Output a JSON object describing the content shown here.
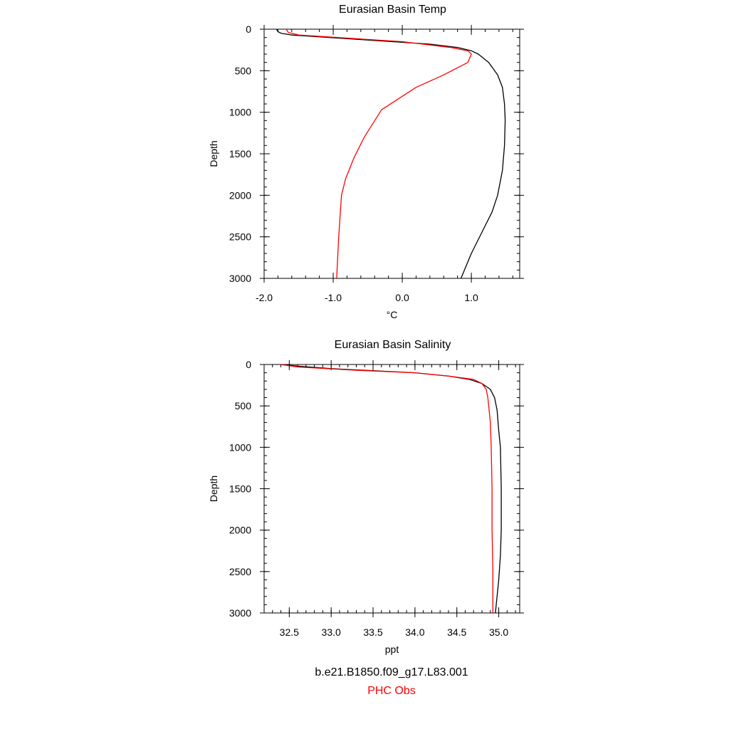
{
  "chart_data": [
    {
      "type": "line",
      "title": "Eurasian Basin Temp",
      "xlabel": "°C",
      "ylabel": "Depth",
      "xlim": [
        -2.0,
        1.7
      ],
      "ylim": [
        0,
        3000
      ],
      "y_inverted": true,
      "xticks": [
        -2.0,
        -1.0,
        0.0,
        1.0
      ],
      "xtick_labels": [
        "-2.0",
        "-1.0",
        "0.0",
        "1.0"
      ],
      "yticks": [
        0,
        500,
        1000,
        1500,
        2000,
        2500,
        3000
      ],
      "ytick_labels": [
        "0",
        "500",
        "1000",
        "1500",
        "2000",
        "2500",
        "3000"
      ],
      "grid": false,
      "series": [
        {
          "name": "b.e21.B1850.f09_g17.L83.001",
          "color": "#000000",
          "x": [
            -1.82,
            -1.8,
            -1.75,
            -1.6,
            -0.5,
            0.4,
            0.8,
            1.0,
            1.1,
            1.25,
            1.38,
            1.45,
            1.48,
            1.49,
            1.48,
            1.45,
            1.38,
            1.3,
            1.18,
            1.0,
            0.85
          ],
          "y": [
            0,
            30,
            50,
            70,
            130,
            180,
            220,
            260,
            300,
            400,
            550,
            700,
            900,
            1100,
            1400,
            1700,
            2000,
            2200,
            2400,
            2700,
            3000
          ]
        },
        {
          "name": "PHC Obs",
          "color": "#ff0000",
          "x": [
            -1.68,
            -1.65,
            -1.5,
            0.0,
            0.7,
            0.95,
            1.0,
            0.95,
            0.6,
            0.2,
            -0.3,
            -0.55,
            -0.7,
            -0.82,
            -0.88,
            -0.92,
            -0.95
          ],
          "y": [
            0,
            40,
            70,
            150,
            220,
            260,
            300,
            400,
            550,
            700,
            970,
            1300,
            1550,
            1800,
            2000,
            2500,
            3000
          ]
        }
      ]
    },
    {
      "type": "line",
      "title": "Eurasian Basin Salinity",
      "xlabel": "ppt",
      "ylabel": "Depth",
      "xlim": [
        32.2,
        35.25
      ],
      "ylim": [
        0,
        3000
      ],
      "y_inverted": true,
      "xticks": [
        32.5,
        33.0,
        33.5,
        34.0,
        34.5,
        35.0
      ],
      "xtick_labels": [
        "32.5",
        "33.0",
        "33.5",
        "34.0",
        "34.5",
        "35.0"
      ],
      "yticks": [
        0,
        500,
        1000,
        1500,
        2000,
        2500,
        3000
      ],
      "ytick_labels": [
        "0",
        "500",
        "1000",
        "1500",
        "2000",
        "2500",
        "3000"
      ],
      "grid": false,
      "series": [
        {
          "name": "b.e21.B1850.f09_g17.L83.001",
          "color": "#000000",
          "x": [
            32.4,
            32.6,
            33.0,
            34.0,
            34.4,
            34.65,
            34.8,
            34.9,
            34.95,
            34.98,
            35.0,
            35.02,
            35.03,
            35.03,
            35.02,
            35.0,
            34.98,
            34.96
          ],
          "y": [
            0,
            20,
            50,
            100,
            140,
            180,
            230,
            300,
            400,
            550,
            800,
            1000,
            1500,
            2000,
            2300,
            2600,
            2800,
            3000
          ]
        },
        {
          "name": "PHC Obs",
          "color": "#ff0000",
          "x": [
            32.4,
            32.6,
            33.3,
            34.0,
            34.4,
            34.7,
            34.8,
            34.85,
            34.87,
            34.88,
            34.9,
            34.91,
            34.92,
            34.92,
            34.93,
            34.93
          ],
          "y": [
            0,
            30,
            70,
            100,
            140,
            180,
            230,
            300,
            400,
            500,
            700,
            1000,
            1500,
            2000,
            2500,
            3000
          ]
        }
      ]
    }
  ],
  "legend": {
    "model_label": "b.e21.B1850.f09_g17.L83.001",
    "obs_label": "PHC Obs",
    "model_color": "#000000",
    "obs_color": "#ff0000"
  }
}
